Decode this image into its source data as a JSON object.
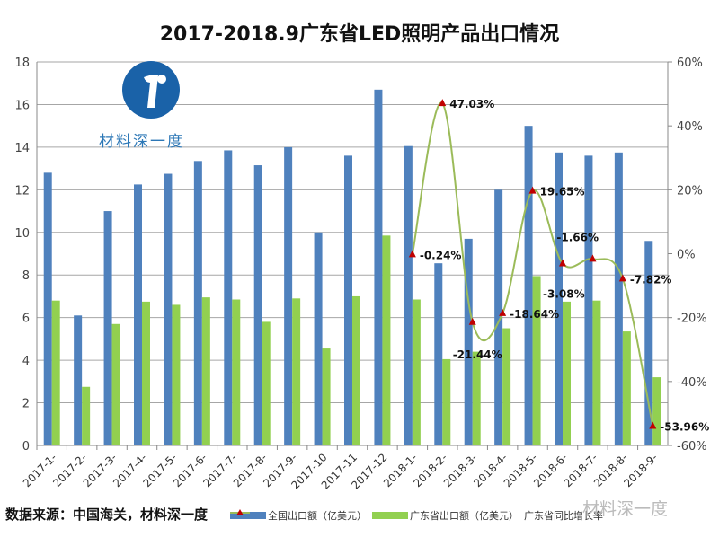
{
  "chart_data": {
    "type": "bar+line",
    "title": "2017-2018.9广东省LED照明产品出口情况",
    "categories": [
      "2017-1-",
      "2017-2-",
      "2017-3-",
      "2017-4-",
      "2017-5-",
      "2017-6-",
      "2017-7-",
      "2017-8-",
      "2017-9-",
      "2017-10",
      "2017-11",
      "2017-12",
      "2018-1-",
      "2018-2-",
      "2018-3-",
      "2018-4-",
      "2018-5-",
      "2018-6-",
      "2018-7-",
      "2018-8-",
      "2018-9-"
    ],
    "series": [
      {
        "name": "全国出口额（亿美元）",
        "type": "bar",
        "axis": "left",
        "color": "#4f81bd",
        "values": [
          12.8,
          6.1,
          11.0,
          12.25,
          12.75,
          13.35,
          13.85,
          13.15,
          14.0,
          10.0,
          13.6,
          16.7,
          14.05,
          8.55,
          9.7,
          12.0,
          15.0,
          13.75,
          13.6,
          13.75,
          9.6
        ]
      },
      {
        "name": "广东省出口额（亿美元）",
        "type": "bar",
        "axis": "right-none",
        "color": "#92d050",
        "values": [
          6.8,
          2.75,
          5.7,
          6.75,
          6.6,
          6.95,
          6.85,
          5.8,
          6.9,
          4.55,
          7.0,
          9.85,
          6.85,
          4.05,
          4.4,
          5.5,
          7.95,
          6.75,
          6.8,
          5.35,
          3.2
        ]
      },
      {
        "name": "广东省同比增长率",
        "type": "line",
        "axis": "right",
        "color": "#9bbb59",
        "marker_color": "#c00000",
        "values": [
          null,
          null,
          null,
          null,
          null,
          null,
          null,
          null,
          null,
          null,
          null,
          null,
          -0.24,
          47.03,
          -21.44,
          -18.64,
          19.65,
          -3.08,
          -1.66,
          -7.82,
          -53.96
        ],
        "labels": [
          "",
          "",
          "",
          "",
          "",
          "",
          "",
          "",
          "",
          "",
          "",
          "",
          "-0.24%",
          "47.03%",
          "-21.44%",
          "-18.64%",
          "19.65%",
          "-3.08%",
          "-1.66%",
          "-7.82%",
          "-53.96%"
        ]
      }
    ],
    "ylim": [
      0,
      18
    ],
    "yticks": [
      "0",
      "2",
      "4",
      "6",
      "8",
      "10",
      "12",
      "14",
      "16",
      "18"
    ],
    "y2lim": [
      -60,
      60
    ],
    "y2ticks": [
      "-60%",
      "-40%",
      "-20%",
      "0%",
      "20%",
      "40%",
      "60%"
    ],
    "grid": true,
    "legend": "bottom"
  },
  "footer": {
    "source": "数据来源：中国海关，材料深一度",
    "watermark": "材料深一度"
  },
  "logo": {
    "text": "材料深一度"
  }
}
